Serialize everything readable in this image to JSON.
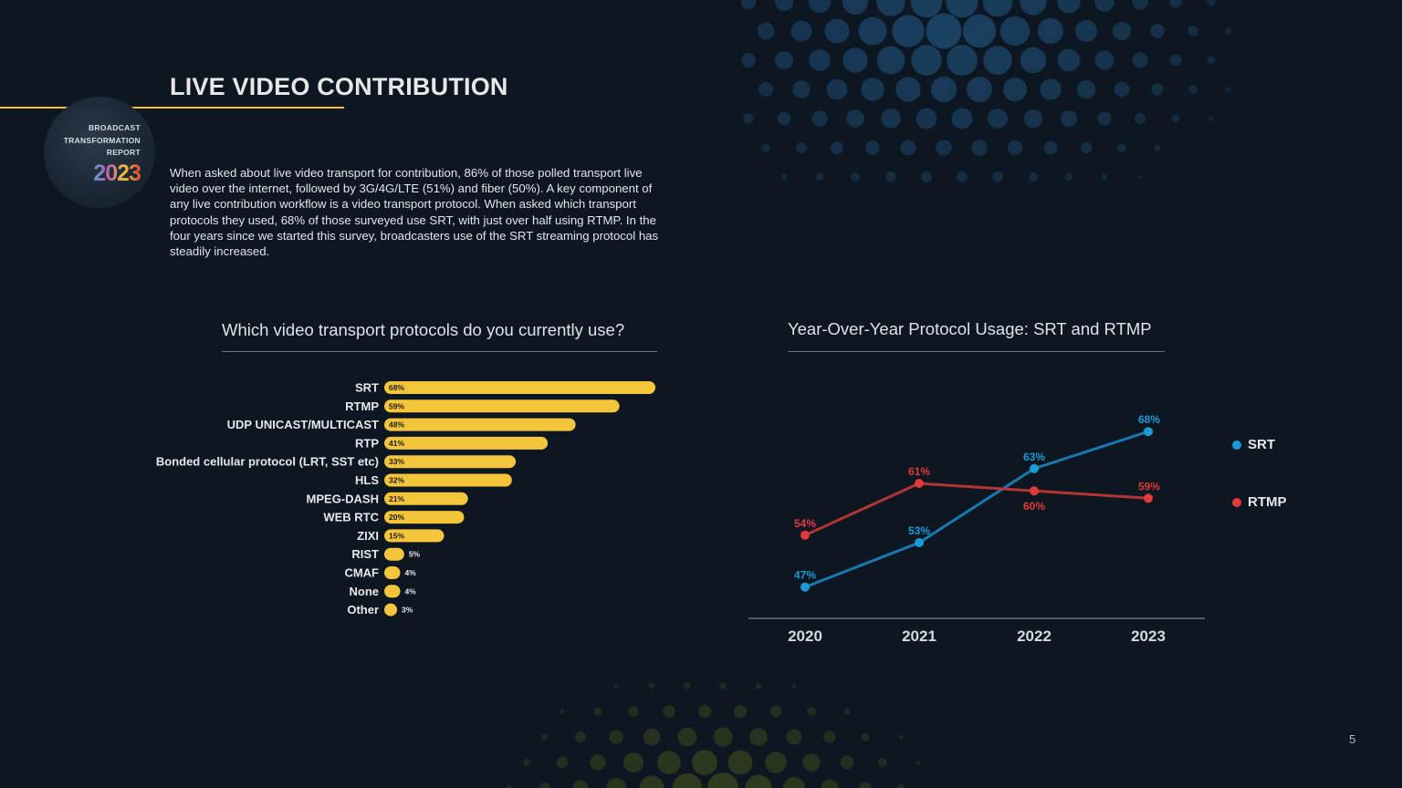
{
  "page": {
    "title": "LIVE VIDEO CONTRIBUTION",
    "badge": {
      "line1": "BROADCAST",
      "line2": "TRANSFORMATION",
      "line3": "REPORT",
      "year": "2023"
    },
    "intro": "When asked about live video transport for contribution, 86% of those polled transport live video over the internet, followed by 3G/4G/LTE (51%) and fiber (50%). A key component of any live contribution workflow is a video transport protocol. When asked which transport protocols they used, 68% of those surveyed use SRT, with just over half using RTMP. In the four years since we started this survey, broadcasters use of the SRT streaming protocol has steadily increased.",
    "page_number": "5"
  },
  "colors": {
    "background": "#0d1721",
    "bar": "#f4c43a",
    "srt": "#1b9ad6",
    "rtmp": "#e03a3a",
    "srt_line": "#1a78b0",
    "rtmp_line": "#b53535",
    "accent_rule": "#f2c230"
  },
  "chart_data": [
    {
      "type": "bar",
      "orientation": "horizontal",
      "title": "Which video transport protocols do you currently use?",
      "categories": [
        "SRT",
        "RTMP",
        "UDP UNICAST/MULTICAST",
        "RTP",
        "Bonded cellular protocol (LRT, SST etc)",
        "HLS",
        "MPEG-DASH",
        "WEB RTC",
        "ZIXI",
        "RIST",
        "CMAF",
        "None",
        "Other"
      ],
      "values": [
        68,
        59,
        48,
        41,
        33,
        32,
        21,
        20,
        15,
        5,
        4,
        4,
        3
      ],
      "labels": [
        "68%",
        "59%",
        "48%",
        "41%",
        "33%",
        "32%",
        "21%",
        "20%",
        "15%",
        "5%",
        "4%",
        "4%",
        "3%"
      ],
      "unit": "%",
      "xlim": [
        0,
        68
      ]
    },
    {
      "type": "line",
      "title": "Year-Over-Year Protocol Usage: SRT and RTMP",
      "categories": [
        "2020",
        "2021",
        "2022",
        "2023"
      ],
      "series": [
        {
          "name": "SRT",
          "values": [
            47,
            53,
            63,
            68
          ],
          "labels": [
            "47%",
            "53%",
            "63%",
            "68%"
          ]
        },
        {
          "name": "RTMP",
          "values": [
            54,
            61,
            60,
            59
          ],
          "labels": [
            "54%",
            "61%",
            "60%",
            "59%"
          ]
        }
      ],
      "legend_position": "right",
      "ylim": [
        44,
        70
      ]
    }
  ]
}
